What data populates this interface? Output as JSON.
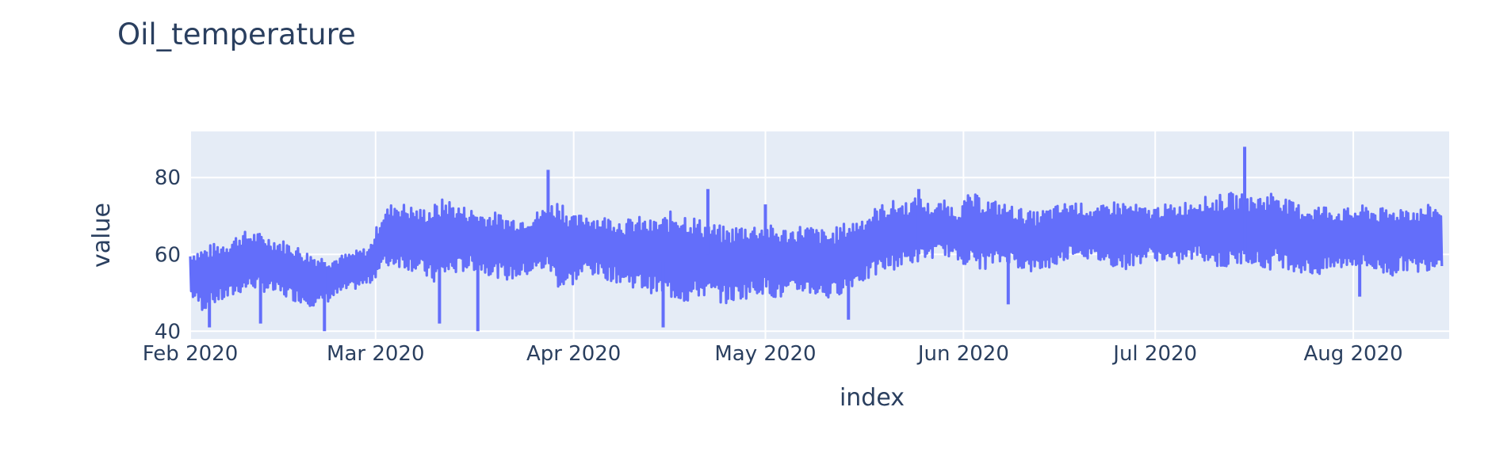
{
  "chart_data": {
    "type": "line",
    "title": "Oil_temperature",
    "xlabel": "index",
    "ylabel": "value",
    "xlim": [
      "2020-02-01",
      "2020-08-16"
    ],
    "ylim": [
      38,
      92
    ],
    "x_ticks": [
      "Feb 2020",
      "Mar 2020",
      "Apr 2020",
      "May 2020",
      "Jun 2020",
      "Jul 2020",
      "Aug 2020"
    ],
    "y_ticks": [
      40,
      60,
      80
    ],
    "grid": true,
    "colors": {
      "series": "#636efa",
      "plot_bg": "#e5ecf6",
      "grid": "#ffffff",
      "text": "#2a3f5f"
    },
    "series": [
      {
        "x": [
          "2020-02-01",
          "2020-02-03",
          "2020-02-05",
          "2020-02-07",
          "2020-02-09",
          "2020-02-11",
          "2020-02-13",
          "2020-02-15",
          "2020-02-17",
          "2020-02-19",
          "2020-02-21",
          "2020-02-23",
          "2020-02-25",
          "2020-02-27",
          "2020-02-29",
          "2020-03-02",
          "2020-03-04",
          "2020-03-06",
          "2020-03-08",
          "2020-03-10",
          "2020-03-12",
          "2020-03-14",
          "2020-03-16",
          "2020-03-18",
          "2020-03-20",
          "2020-03-22",
          "2020-03-24",
          "2020-03-26",
          "2020-03-28",
          "2020-03-30",
          "2020-04-01",
          "2020-04-03",
          "2020-04-05",
          "2020-04-07",
          "2020-04-09",
          "2020-04-11",
          "2020-04-13",
          "2020-04-15",
          "2020-04-17",
          "2020-04-19",
          "2020-04-21",
          "2020-04-23",
          "2020-04-25",
          "2020-04-27",
          "2020-04-29",
          "2020-05-01",
          "2020-05-03",
          "2020-05-05",
          "2020-05-07",
          "2020-05-09",
          "2020-05-11",
          "2020-05-13",
          "2020-05-15",
          "2020-05-17",
          "2020-05-19",
          "2020-05-21",
          "2020-05-23",
          "2020-05-25",
          "2020-05-27",
          "2020-05-29",
          "2020-05-31",
          "2020-06-02",
          "2020-06-04",
          "2020-06-06",
          "2020-06-08",
          "2020-06-10",
          "2020-06-12",
          "2020-06-14",
          "2020-06-16",
          "2020-06-18",
          "2020-06-20",
          "2020-06-22",
          "2020-06-24",
          "2020-06-26",
          "2020-06-28",
          "2020-06-30",
          "2020-07-02",
          "2020-07-04",
          "2020-07-06",
          "2020-07-08",
          "2020-07-10",
          "2020-07-12",
          "2020-07-14",
          "2020-07-16",
          "2020-07-18",
          "2020-07-20",
          "2020-07-22",
          "2020-07-24",
          "2020-07-26",
          "2020-07-28",
          "2020-07-30",
          "2020-08-01",
          "2020-08-03",
          "2020-08-05",
          "2020-08-07",
          "2020-08-09",
          "2020-08-11",
          "2020-08-13",
          "2020-08-15"
        ],
        "low": [
          49,
          45,
          47,
          48,
          50,
          51,
          50,
          49,
          48,
          47,
          46,
          48,
          50,
          51,
          52,
          56,
          57,
          56,
          55,
          52,
          54,
          55,
          56,
          55,
          54,
          53,
          54,
          55,
          56,
          50,
          52,
          55,
          54,
          53,
          52,
          51,
          50,
          49,
          48,
          47,
          49,
          48,
          47,
          48,
          49,
          50,
          48,
          49,
          50,
          49,
          48,
          50,
          52,
          53,
          55,
          56,
          57,
          58,
          59,
          60,
          58,
          57,
          56,
          57,
          58,
          56,
          55,
          56,
          57,
          60,
          59,
          58,
          57,
          56,
          57,
          59,
          58,
          57,
          58,
          59,
          57,
          56,
          57,
          58,
          55,
          57,
          56,
          55,
          54,
          55,
          56,
          57,
          56,
          55,
          54,
          56,
          55,
          56,
          57
        ],
        "high": [
          61,
          62,
          63,
          64,
          66,
          66,
          65,
          64,
          63,
          61,
          60,
          59,
          60,
          61,
          62,
          71,
          74,
          73,
          72,
          73,
          75,
          73,
          72,
          71,
          71,
          70,
          70,
          71,
          73,
          75,
          70,
          71,
          70,
          70,
          69,
          70,
          69,
          70,
          72,
          71,
          69,
          68,
          67,
          68,
          68,
          68,
          67,
          67,
          68,
          67,
          66,
          68,
          69,
          71,
          73,
          74,
          74,
          75,
          73,
          74,
          72,
          76,
          75,
          74,
          73,
          72,
          71,
          72,
          73,
          74,
          73,
          72,
          74,
          74,
          73,
          72,
          73,
          73,
          74,
          75,
          75,
          76,
          76,
          75,
          76,
          77,
          74,
          73,
          73,
          73,
          72,
          72,
          73,
          72,
          72,
          73,
          72,
          73,
          73
        ],
        "spikes": [
          {
            "x": "2020-02-04",
            "y": 41
          },
          {
            "x": "2020-02-12",
            "y": 42
          },
          {
            "x": "2020-02-22",
            "y": 40
          },
          {
            "x": "2020-03-11",
            "y": 42
          },
          {
            "x": "2020-03-17",
            "y": 40
          },
          {
            "x": "2020-03-28",
            "y": 82
          },
          {
            "x": "2020-04-15",
            "y": 41
          },
          {
            "x": "2020-04-22",
            "y": 77
          },
          {
            "x": "2020-05-01",
            "y": 73
          },
          {
            "x": "2020-05-14",
            "y": 43
          },
          {
            "x": "2020-05-25",
            "y": 77
          },
          {
            "x": "2020-06-08",
            "y": 47
          },
          {
            "x": "2020-07-15",
            "y": 88
          },
          {
            "x": "2020-08-02",
            "y": 49
          }
        ]
      }
    ]
  }
}
